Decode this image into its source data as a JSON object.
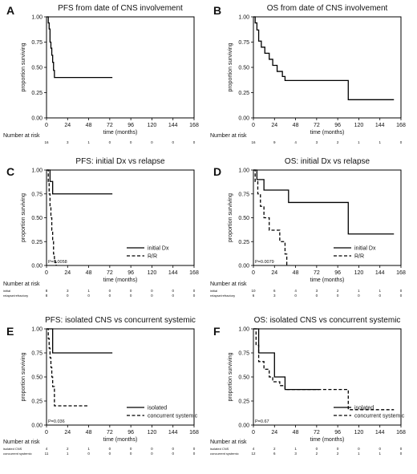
{
  "chart_data": [
    {
      "panel_letter": "A",
      "type": "line",
      "title": "PFS from date of CNS involvement",
      "xlabel": "time (months)",
      "ylabel": "proportion surviving",
      "xticks": [
        "0",
        "24",
        "48",
        "72",
        "96",
        "120",
        "144",
        "168"
      ],
      "yticks": [
        "0.00",
        "0.25",
        "0.50",
        "0.75",
        "1.00"
      ],
      "xlim": [
        0,
        168
      ],
      "ylim": [
        0,
        1
      ],
      "series": [
        {
          "name": "",
          "style": "solid",
          "x": [
            0,
            2,
            3,
            4,
            5,
            6,
            7,
            8,
            9,
            75
          ],
          "y": [
            1.0,
            0.94,
            0.88,
            0.75,
            0.69,
            0.62,
            0.55,
            0.47,
            0.4,
            0.4
          ]
        }
      ],
      "pvalue": "",
      "risk_table": {
        "title": "Number at risk",
        "rows": [
          {
            "label": "",
            "values": [
              "16",
              "3",
              "1",
              "0",
              "0",
              "0",
              "0",
              "0"
            ]
          }
        ]
      }
    },
    {
      "panel_letter": "B",
      "type": "line",
      "title": "OS from date of CNS involvement",
      "xlabel": "time (months)",
      "ylabel": "proportion surviving",
      "xticks": [
        "0",
        "24",
        "48",
        "72",
        "96",
        "120",
        "144",
        "168"
      ],
      "yticks": [
        "0.00",
        "0.25",
        "0.50",
        "0.75",
        "1.00"
      ],
      "xlim": [
        0,
        168
      ],
      "ylim": [
        0,
        1
      ],
      "series": [
        {
          "name": "",
          "style": "solid",
          "x": [
            0,
            2,
            4,
            6,
            9,
            13,
            18,
            22,
            27,
            33,
            36,
            108,
            160
          ],
          "y": [
            1.0,
            0.94,
            0.87,
            0.76,
            0.7,
            0.64,
            0.58,
            0.52,
            0.46,
            0.41,
            0.37,
            0.18,
            0.18
          ]
        }
      ],
      "pvalue": "",
      "risk_table": {
        "title": "Number at risk",
        "rows": [
          {
            "label": "",
            "values": [
              "16",
              "9",
              "4",
              "3",
              "2",
              "1",
              "1",
              "0"
            ]
          }
        ]
      }
    },
    {
      "panel_letter": "C",
      "type": "line",
      "title": "PFS: initial Dx vs relapse",
      "xlabel": "time (months)",
      "ylabel": "proportion surviving",
      "xticks": [
        "0",
        "24",
        "48",
        "72",
        "96",
        "120",
        "144",
        "168"
      ],
      "yticks": [
        "0.00",
        "0.25",
        "0.50",
        "0.75",
        "1.00"
      ],
      "xlim": [
        0,
        168
      ],
      "ylim": [
        0,
        1
      ],
      "series": [
        {
          "name": "initial Dx",
          "style": "solid",
          "x": [
            0,
            4,
            7,
            75
          ],
          "y": [
            1.0,
            0.88,
            0.75,
            0.75
          ]
        },
        {
          "name": "R/R",
          "style": "dashed",
          "x": [
            0,
            2,
            3,
            4,
            5,
            6,
            7,
            8,
            9,
            10,
            11
          ],
          "y": [
            1.0,
            0.88,
            0.75,
            0.62,
            0.5,
            0.37,
            0.25,
            0.12,
            0.06,
            0.03,
            0.0
          ]
        }
      ],
      "pvalue": "P=0.0058",
      "risk_table": {
        "title": "Number at risk",
        "rows": [
          {
            "label": "initial",
            "values": [
              "8",
              "3",
              "1",
              "0",
              "0",
              "0",
              "0",
              "0"
            ]
          },
          {
            "label": "relapse/refractory",
            "values": [
              "8",
              "0",
              "0",
              "0",
              "0",
              "0",
              "0",
              "0"
            ]
          }
        ]
      }
    },
    {
      "panel_letter": "D",
      "type": "line",
      "title": "OS: initial Dx vs relapse",
      "xlabel": "time (months)",
      "ylabel": "proportion surviving",
      "xticks": [
        "0",
        "24",
        "48",
        "72",
        "96",
        "120",
        "144",
        "168"
      ],
      "yticks": [
        "0.00",
        "0.25",
        "0.50",
        "0.75",
        "1.00"
      ],
      "xlim": [
        0,
        168
      ],
      "ylim": [
        0,
        1
      ],
      "series": [
        {
          "name": "initial Dx",
          "style": "solid",
          "x": [
            0,
            4,
            12,
            40,
            108,
            160
          ],
          "y": [
            1.0,
            0.9,
            0.79,
            0.66,
            0.33,
            0.33
          ]
        },
        {
          "name": "R/R",
          "style": "dashed",
          "x": [
            0,
            2,
            5,
            8,
            12,
            18,
            22,
            30,
            36,
            38
          ],
          "y": [
            1.0,
            0.88,
            0.75,
            0.62,
            0.5,
            0.37,
            0.37,
            0.25,
            0.12,
            0.0
          ]
        }
      ],
      "pvalue": "P=0.0079",
      "risk_table": {
        "title": "Number at risk",
        "rows": [
          {
            "label": "initial",
            "values": [
              "10",
              "6",
              "4",
              "3",
              "2",
              "1",
              "1",
              "0"
            ]
          },
          {
            "label": "relapse/refractory",
            "values": [
              "6",
              "3",
              "0",
              "0",
              "0",
              "0",
              "0",
              "0"
            ]
          }
        ]
      }
    },
    {
      "panel_letter": "E",
      "type": "line",
      "title": "PFS: isolated CNS vs concurrent systemic",
      "xlabel": "time (months)",
      "ylabel": "proportion surviving",
      "xticks": [
        "0",
        "24",
        "48",
        "72",
        "96",
        "120",
        "144",
        "168"
      ],
      "yticks": [
        "0.00",
        "0.25",
        "0.50",
        "0.75",
        "1.00"
      ],
      "xlim": [
        0,
        168
      ],
      "ylim": [
        0,
        1
      ],
      "series": [
        {
          "name": "isolated",
          "style": "solid",
          "x": [
            0,
            7,
            75
          ],
          "y": [
            1.0,
            0.75,
            0.75
          ]
        },
        {
          "name": "concurrent systemic",
          "style": "dashed",
          "x": [
            0,
            2,
            3,
            4,
            5,
            6,
            7,
            9,
            48
          ],
          "y": [
            1.0,
            0.9,
            0.8,
            0.7,
            0.6,
            0.5,
            0.4,
            0.2,
            0.2
          ]
        }
      ],
      "pvalue": "P=0.036",
      "risk_table": {
        "title": "Number at risk",
        "rows": [
          {
            "label": "isolated CNS",
            "values": [
              "4",
              "2",
              "1",
              "0",
              "0",
              "0",
              "0",
              "0"
            ]
          },
          {
            "label": "concurrent systemic",
            "values": [
              "11",
              "1",
              "0",
              "0",
              "0",
              "0",
              "0",
              "0"
            ]
          }
        ]
      }
    },
    {
      "panel_letter": "F",
      "type": "line",
      "title": "OS: isolated CNS vs concurrent systemic",
      "xlabel": "time (months)",
      "ylabel": "proportion surviving",
      "xticks": [
        "0",
        "24",
        "48",
        "72",
        "96",
        "120",
        "144",
        "168"
      ],
      "yticks": [
        "0.00",
        "0.25",
        "0.50",
        "0.75",
        "1.00"
      ],
      "xlim": [
        0,
        168
      ],
      "ylim": [
        0,
        1
      ],
      "series": [
        {
          "name": "isolated",
          "style": "solid",
          "x": [
            0,
            6,
            24,
            36,
            75
          ],
          "y": [
            1.0,
            0.75,
            0.5,
            0.37,
            0.37
          ]
        },
        {
          "name": "concurrent systemic",
          "style": "dashed",
          "x": [
            0,
            3,
            6,
            12,
            18,
            22,
            30,
            36,
            108,
            160
          ],
          "y": [
            1.0,
            0.83,
            0.66,
            0.58,
            0.5,
            0.45,
            0.41,
            0.37,
            0.16,
            0.16
          ]
        }
      ],
      "pvalue": "P=0.67",
      "risk_table": {
        "title": "Number at risk",
        "rows": [
          {
            "label": "isolated CNS",
            "values": [
              "4",
              "2",
              "1",
              "0",
              "0",
              "0",
              "0",
              "0"
            ]
          },
          {
            "label": "concurrent systemic",
            "values": [
              "12",
              "6",
              "3",
              "2",
              "2",
              "1",
              "1",
              "0"
            ]
          }
        ]
      }
    }
  ]
}
